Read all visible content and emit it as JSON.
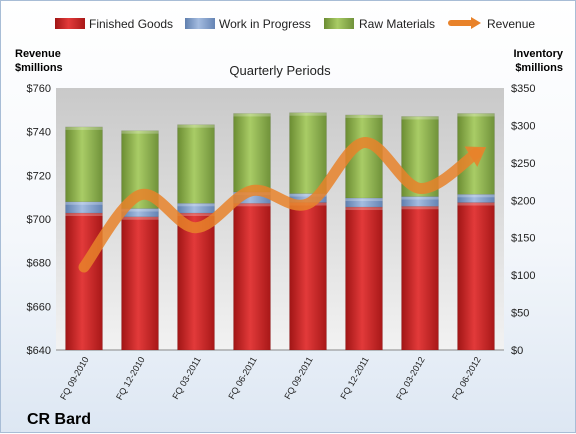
{
  "chart_data": {
    "type": "bar",
    "title": "Quarterly Periods",
    "stacked": true,
    "categories": [
      "FQ 09-2010",
      "FQ 12-2010",
      "FQ 03-2011",
      "FQ 06-2011",
      "FQ 09-2011",
      "FQ 12-2011",
      "FQ 03-2012",
      "FQ 06-2012"
    ],
    "series": [
      {
        "name": "Finished Goods",
        "axis": "right",
        "color": "#cc2020",
        "values": [
          183,
          178,
          183,
          196,
          197,
          191,
          192,
          197
        ]
      },
      {
        "name": "Work in Progress",
        "axis": "right",
        "color": "#7f9dc9",
        "values": [
          15,
          11,
          13,
          15,
          12,
          12,
          13,
          11
        ]
      },
      {
        "name": "Raw Materials",
        "axis": "right",
        "color": "#8cb04a",
        "values": [
          100,
          104,
          105,
          105,
          108,
          111,
          107,
          108
        ]
      },
      {
        "name": "Revenue",
        "axis": "left",
        "type": "line",
        "color": "#e8822a",
        "values": [
          678,
          711,
          696,
          713,
          707,
          735,
          714,
          730
        ]
      }
    ],
    "ylabel_left": [
      "Revenue",
      "$millions"
    ],
    "ylabel_right": [
      "Inventory",
      "$millions"
    ],
    "ylim_left": [
      640,
      760
    ],
    "ylim_right": [
      0,
      350
    ],
    "yticks_left": [
      "$760",
      "$740",
      "$720",
      "$700",
      "$680",
      "$660",
      "$640"
    ],
    "yticks_right": [
      "$350",
      "$300",
      "$250",
      "$200",
      "$150",
      "$100",
      "$50",
      "$0"
    ],
    "legend_position": "top",
    "grid": false
  },
  "company": "CR Bard"
}
